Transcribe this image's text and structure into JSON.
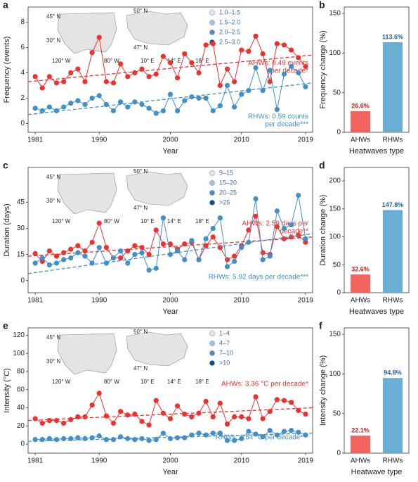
{
  "chart_data": [
    {
      "type": "line",
      "label": "a",
      "ylabel": "Frequency (events)",
      "xlabel": "Year",
      "x": [
        1981,
        1982,
        1983,
        1984,
        1985,
        1986,
        1987,
        1988,
        1989,
        1990,
        1991,
        1992,
        1993,
        1994,
        1995,
        1996,
        1997,
        1998,
        1999,
        2000,
        2001,
        2002,
        2003,
        2004,
        2005,
        2006,
        2007,
        2008,
        2009,
        2010,
        2011,
        2012,
        2013,
        2014,
        2015,
        2016,
        2017,
        2018,
        2019
      ],
      "xlim": [
        1980,
        2020
      ],
      "xticks": [
        1981,
        1990,
        2000,
        2010,
        2019
      ],
      "ylim": [
        -0.7,
        9.2
      ],
      "yticks": [
        0,
        2,
        4,
        6,
        8
      ],
      "series": [
        {
          "name": "AHWs",
          "color": "#f0302c",
          "trend": [
            3.3,
            5.4
          ],
          "annotation": [
            "AHWs: 0.49 events",
            "per decade*"
          ],
          "values": [
            3.7,
            2.8,
            3.7,
            3.2,
            3.3,
            4.0,
            4.3,
            3.3,
            5.6,
            6.8,
            3.3,
            3.2,
            4.7,
            3.7,
            4.0,
            4.3,
            3.7,
            3.9,
            5.3,
            4.8,
            3.6,
            5.5,
            4.8,
            4.0,
            6.2,
            6.3,
            3.0,
            4.3,
            3.3,
            5.8,
            5.7,
            6.9,
            5.5,
            3.3,
            6.3,
            6.2,
            5.8,
            5.2,
            4.5
          ]
        },
        {
          "name": "RHWs",
          "color": "#3f8fc9",
          "trend": [
            0.7,
            3.2
          ],
          "annotation": [
            "RHWs: 0.59 counts",
            "per decade***"
          ],
          "values": [
            1.2,
            1.0,
            1.3,
            1.0,
            1.3,
            1.6,
            1.8,
            1.5,
            2.0,
            2.2,
            1.5,
            1.0,
            1.7,
            1.3,
            1.7,
            1.5,
            1.2,
            0.8,
            1.0,
            2.3,
            1.0,
            1.8,
            2.1,
            2.0,
            2.0,
            1.0,
            1.4,
            3.0,
            1.3,
            2.3,
            2.6,
            4.4,
            2.6,
            4.2,
            1.1,
            3.9,
            4.5,
            4.0,
            2.9
          ]
        }
      ],
      "inset": {
        "labels": [
          "45° N",
          "30° N",
          "120° W",
          "80° W",
          "50° N",
          "47° N",
          "10° E",
          "14° E",
          "18° E"
        ],
        "legend": [
          {
            "label": "1.0–1.5",
            "color": "#dfe9f4"
          },
          {
            "label": "1.5–2.0",
            "color": "#9cc3e0"
          },
          {
            "label": "2.0–2.5",
            "color": "#4f8fc4"
          },
          {
            "label": "2.5–3.0",
            "color": "#0b4c92"
          }
        ]
      }
    },
    {
      "type": "bar",
      "label": "b",
      "ylabel": "Frequency change (%)",
      "xlabel": "Heatwaves type",
      "categories": [
        "AHWs",
        "RHWs"
      ],
      "values": [
        26.6,
        113.6
      ],
      "value_labels": [
        "26.6%",
        "113.6%"
      ],
      "colors": [
        "#f4645e",
        "#6aaed6"
      ],
      "label_colors": [
        "#c8201c",
        "#1f5f99"
      ],
      "ylim": [
        0,
        158
      ],
      "yticks": [
        0,
        50,
        100,
        150
      ]
    },
    {
      "type": "line",
      "label": "c",
      "ylabel": "Duration (days)",
      "xlabel": "Year",
      "x": [
        1981,
        1982,
        1983,
        1984,
        1985,
        1986,
        1987,
        1988,
        1989,
        1990,
        1991,
        1992,
        1993,
        1994,
        1995,
        1996,
        1997,
        1998,
        1999,
        2000,
        2001,
        2002,
        2003,
        2004,
        2005,
        2006,
        2007,
        2008,
        2009,
        2010,
        2011,
        2012,
        2013,
        2014,
        2015,
        2016,
        2017,
        2018,
        2019
      ],
      "xlim": [
        1980,
        2020
      ],
      "xticks": [
        1981,
        1990,
        2000,
        2010,
        2019
      ],
      "ylim": [
        -7,
        65
      ],
      "yticks": [
        0,
        15,
        30,
        45
      ],
      "series": [
        {
          "name": "AHWs",
          "color": "#f0302c",
          "trend": [
            14,
            25
          ],
          "annotation": [
            "AHWs: 2.59 days per",
            "decade**"
          ],
          "values": [
            15.5,
            11,
            17,
            14,
            16,
            18,
            20,
            17,
            22,
            33,
            19,
            13,
            13,
            17,
            20,
            19,
            15,
            29,
            21,
            21,
            18,
            21,
            22,
            12,
            20,
            25,
            19,
            12,
            14,
            20,
            29,
            37,
            16,
            15,
            31,
            24,
            25,
            26,
            22
          ]
        },
        {
          "name": "RHWs",
          "color": "#3f8fc9",
          "trend": [
            4,
            27
          ],
          "annotation": [
            "RHWs: 5.92 days per decade***"
          ],
          "values": [
            10,
            13,
            9,
            10,
            12,
            13,
            16,
            14,
            10,
            19,
            10,
            13,
            17,
            10,
            15,
            16,
            6,
            7,
            36,
            15,
            17,
            12,
            23,
            12,
            24,
            30,
            36,
            8,
            11,
            19,
            22,
            47,
            12,
            14,
            40,
            30,
            32,
            49,
            24
          ]
        }
      ],
      "inset": {
        "labels": [
          "45° N",
          "30° N",
          "120° W",
          "80° W",
          "50° N",
          "47° N",
          "10° E",
          "14° E",
          "18° E"
        ],
        "legend": [
          {
            "label": "9–15",
            "color": "#dfe9f4"
          },
          {
            "label": "15–20",
            "color": "#9cc3e0"
          },
          {
            "label": "20–25",
            "color": "#4f8fc4"
          },
          {
            "label": ">25",
            "color": "#0b4c92"
          }
        ]
      }
    },
    {
      "type": "bar",
      "label": "d",
      "ylabel": "Duration change (%)",
      "xlabel": "Heatwaves type",
      "categories": [
        "AHWs",
        "RHWs"
      ],
      "values": [
        32.6,
        147.8
      ],
      "value_labels": [
        "32.6%",
        "147.8%"
      ],
      "colors": [
        "#f4645e",
        "#6aaed6"
      ],
      "label_colors": [
        "#c8201c",
        "#1f5f99"
      ],
      "ylim": [
        0,
        224
      ],
      "yticks": [
        0,
        50,
        100,
        150,
        200
      ]
    },
    {
      "type": "line",
      "label": "e",
      "ylabel": "Intensity (°C)",
      "xlabel": "Year",
      "x": [
        1981,
        1982,
        1983,
        1984,
        1985,
        1986,
        1987,
        1988,
        1989,
        1990,
        1991,
        1992,
        1993,
        1994,
        1995,
        1996,
        1997,
        1998,
        1999,
        2000,
        2001,
        2002,
        2003,
        2004,
        2005,
        2006,
        2007,
        2008,
        2009,
        2010,
        2011,
        2012,
        2013,
        2014,
        2015,
        2016,
        2017,
        2018,
        2019
      ],
      "xlim": [
        1980,
        2020
      ],
      "xticks": [
        1981,
        1990,
        2000,
        2010,
        2019
      ],
      "ylim": [
        -10,
        128
      ],
      "yticks": [
        0,
        20,
        40,
        60,
        80,
        100,
        120
      ],
      "series": [
        {
          "name": "AHWs",
          "color": "#f0302c",
          "trend": [
            26,
            40
          ],
          "annotation": [
            "AHWs: 3.36 °C per decade*"
          ],
          "values": [
            28,
            23,
            26,
            26,
            23,
            27,
            30,
            30,
            43,
            56,
            31,
            23,
            36,
            32,
            33,
            25,
            21,
            48,
            34,
            28,
            42,
            33,
            30,
            34,
            47,
            30,
            45,
            22,
            30,
            30,
            28,
            52,
            28,
            36,
            49,
            48,
            46,
            37,
            33
          ]
        },
        {
          "name": "RHWs",
          "color": "#3f8fc9",
          "trend": [
            3,
            12
          ],
          "annotation": [
            "RHWs: 1.54 °C per decade***"
          ],
          "values": [
            5,
            5,
            6,
            5,
            6,
            6,
            7,
            6,
            7,
            9,
            5,
            5,
            8,
            6,
            5,
            6,
            4,
            5,
            12,
            6,
            7,
            7,
            10,
            12,
            10,
            12,
            12,
            4,
            4,
            6,
            14,
            11,
            8,
            15,
            10,
            14,
            15,
            13,
            10
          ]
        }
      ],
      "inset": {
        "labels": [
          "45° N",
          "30° N",
          "120° W",
          "80° W",
          "50° N",
          "47° N",
          "10° E",
          "14° E",
          "18° E"
        ],
        "legend": [
          {
            "label": "1–4",
            "color": "#dfe9f4"
          },
          {
            "label": "4–7",
            "color": "#9cc3e0"
          },
          {
            "label": "7–10",
            "color": "#4f8fc4"
          },
          {
            "label": ">10",
            "color": "#0b4c92"
          }
        ]
      }
    },
    {
      "type": "bar",
      "label": "f",
      "ylabel": "Intensity change (%)",
      "xlabel": "Heatwave type",
      "categories": [
        "AHWs",
        "RHWs"
      ],
      "values": [
        22.1,
        94.8
      ],
      "value_labels": [
        "22.1%",
        "94.8%"
      ],
      "colors": [
        "#f4645e",
        "#6aaed6"
      ],
      "label_colors": [
        "#c8201c",
        "#1f5f99"
      ],
      "ylim": [
        0,
        158
      ],
      "yticks": [
        0,
        50,
        100,
        150
      ]
    }
  ]
}
